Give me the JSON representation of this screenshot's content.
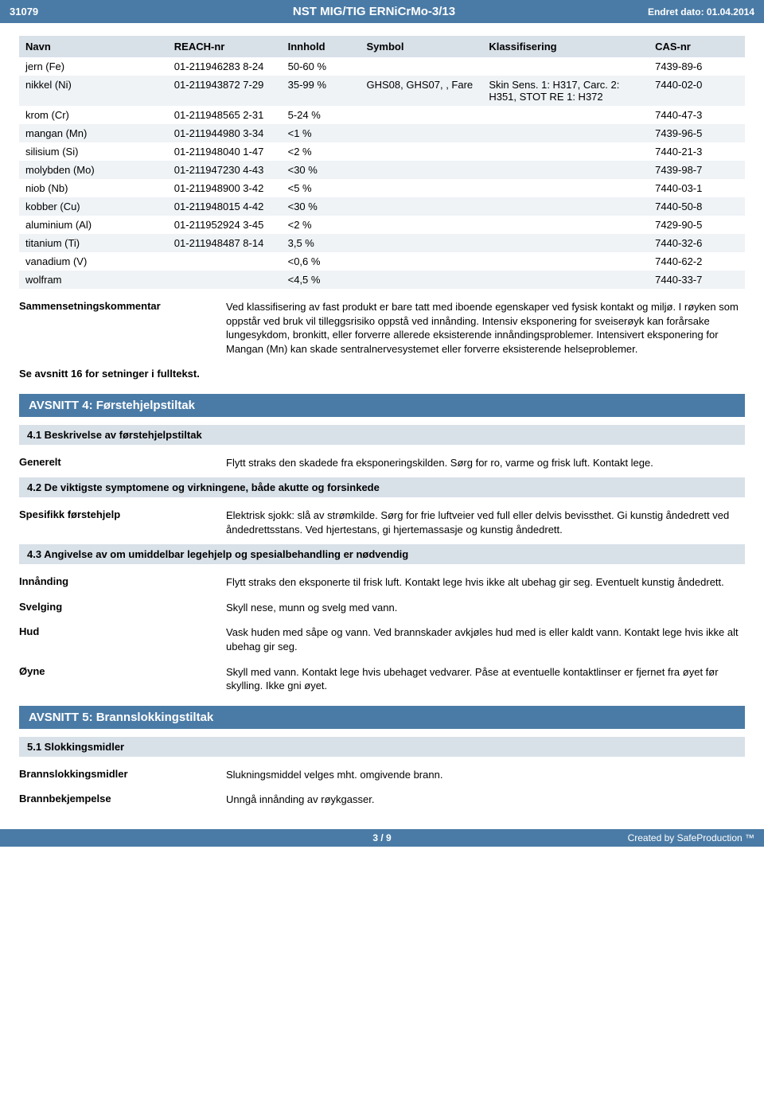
{
  "header": {
    "doc_id": "31079",
    "title": "NST MIG/TIG ERNiCrMo-3/13",
    "changed_label": "Endret dato: 01.04.2014"
  },
  "composition": {
    "columns": [
      "Navn",
      "REACH-nr",
      "Innhold",
      "Symbol",
      "Klassifisering",
      "CAS-nr"
    ],
    "rows": [
      {
        "navn": "jern (Fe)",
        "reach": "01-211946283 8-24",
        "innhold": "50-60 %",
        "symbol": "",
        "klass": "",
        "cas": "7439-89-6"
      },
      {
        "navn": "nikkel (Ni)",
        "reach": "01-211943872 7-29",
        "innhold": "35-99 %",
        "symbol": "GHS08, GHS07, , Fare",
        "klass": "Skin Sens. 1: H317, Carc. 2: H351, STOT RE 1: H372",
        "cas": "7440-02-0"
      },
      {
        "navn": "krom (Cr)",
        "reach": "01-211948565 2-31",
        "innhold": "5-24 %",
        "symbol": "",
        "klass": "",
        "cas": "7440-47-3"
      },
      {
        "navn": "mangan (Mn)",
        "reach": "01-211944980 3-34",
        "innhold": "<1 %",
        "symbol": "",
        "klass": "",
        "cas": "7439-96-5"
      },
      {
        "navn": "silisium (Si)",
        "reach": "01-211948040 1-47",
        "innhold": "<2 %",
        "symbol": "",
        "klass": "",
        "cas": "7440-21-3"
      },
      {
        "navn": "molybden (Mo)",
        "reach": "01-211947230 4-43",
        "innhold": "<30 %",
        "symbol": "",
        "klass": "",
        "cas": "7439-98-7"
      },
      {
        "navn": "niob (Nb)",
        "reach": "01-211948900 3-42",
        "innhold": "<5 %",
        "symbol": "",
        "klass": "",
        "cas": "7440-03-1"
      },
      {
        "navn": "kobber (Cu)",
        "reach": "01-211948015 4-42",
        "innhold": "<30 %",
        "symbol": "",
        "klass": "",
        "cas": "7440-50-8"
      },
      {
        "navn": "aluminium (Al)",
        "reach": "01-211952924 3-45",
        "innhold": "<2 %",
        "symbol": "",
        "klass": "",
        "cas": "7429-90-5"
      },
      {
        "navn": "titanium (Ti)",
        "reach": "01-211948487 8-14",
        "innhold": "3,5 %",
        "symbol": "",
        "klass": "",
        "cas": "7440-32-6"
      },
      {
        "navn": "vanadium (V)",
        "reach": "",
        "innhold": "<0,6 %",
        "symbol": "",
        "klass": "",
        "cas": "7440-62-2"
      },
      {
        "navn": "wolfram",
        "reach": "",
        "innhold": "<4,5 %",
        "symbol": "",
        "klass": "",
        "cas": "7440-33-7"
      }
    ]
  },
  "composition_comment": {
    "label": "Sammensetningskommentar",
    "text": "Ved klassifisering av fast produkt er bare tatt med iboende egenskaper ved fysisk kontakt og miljø. I røyken som oppstår ved bruk vil tilleggsrisiko oppstå ved innånding. Intensiv eksponering for sveiserøyk kan forårsake lungesykdom, bronkitt, eller forverre allerede eksisterende innåndingsproblemer. Intensivert eksponering for Mangan (Mn) kan skade sentralnervesystemet eller forverre eksisterende helseproblemer."
  },
  "see_section_note": "Se avsnitt 16 for setninger i fulltekst.",
  "section4": {
    "title": "AVSNITT 4: Førstehjelpstiltak",
    "sub1": {
      "title": "4.1 Beskrivelse av førstehjelpstiltak",
      "generelt_label": "Generelt",
      "generelt_text": "Flytt straks den skadede fra eksponeringskilden. Sørg for ro, varme og frisk luft. Kontakt lege."
    },
    "sub2": {
      "title": "4.2 De viktigste symptomene og virkningene, både akutte og forsinkede",
      "spesifikk_label": "Spesifikk førstehjelp",
      "spesifikk_text": "Elektrisk sjokk: slå av strømkilde. Sørg for frie luftveier ved full eller delvis bevissthet. Gi kunstig åndedrett ved åndedrettsstans. Ved hjertestans, gi hjertemassasje og kunstig åndedrett."
    },
    "sub3": {
      "title": "4.3 Angivelse av om umiddelbar legehjelp og spesialbehandling er nødvendig",
      "innanding_label": "Innånding",
      "innanding_text": "Flytt straks den eksponerte til frisk luft. Kontakt lege hvis ikke alt ubehag gir seg. Eventuelt kunstig åndedrett.",
      "svelging_label": "Svelging",
      "svelging_text": "Skyll nese, munn og svelg med vann.",
      "hud_label": "Hud",
      "hud_text": "Vask huden med såpe og vann. Ved brannskader avkjøles hud med is eller kaldt vann. Kontakt lege hvis ikke alt ubehag gir seg.",
      "oyne_label": "Øyne",
      "oyne_text": "Skyll med vann. Kontakt lege hvis ubehaget vedvarer. Påse at eventuelle kontaktlinser er fjernet fra øyet før skylling. Ikke gni øyet."
    }
  },
  "section5": {
    "title": "AVSNITT 5: Brannslokkingstiltak",
    "sub1": {
      "title": "5.1 Slokkingsmidler",
      "midler_label": "Brannslokkingsmidler",
      "midler_text": "Slukningsmiddel velges mht. omgivende brann.",
      "bekjemp_label": "Brannbekjempelse",
      "bekjemp_text": "Unngå innånding av røykgasser."
    }
  },
  "footer": {
    "page": "3 / 9",
    "credit": "Created by SafeProduction ™"
  }
}
